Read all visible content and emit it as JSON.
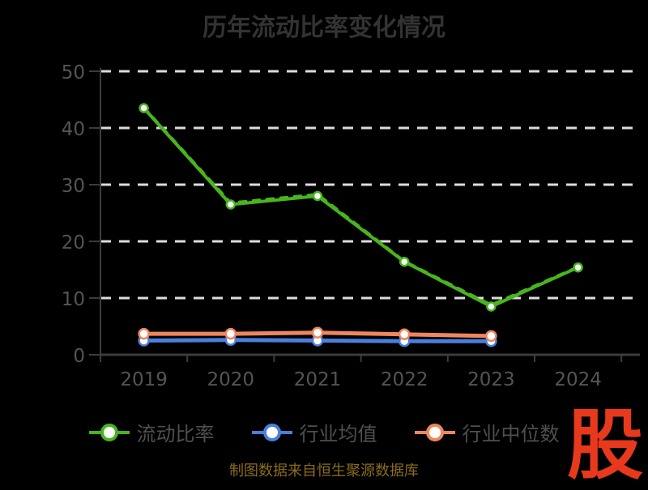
{
  "chart": {
    "title": "历年流动比率变化情况",
    "source_note": "制图数据来自恒生聚源数据库",
    "logo_text": "股"
  },
  "colors": {
    "background": "#000000",
    "title": "#333333",
    "axis_line": "#3c3c3c",
    "tick_label": "#545454",
    "gridline": "#dcdcdc",
    "legend_text": "#4f4f4f",
    "source_text": "#8a6c1e",
    "logo_red": "#e8391c",
    "series_green": "#48b41e",
    "series_blue": "#4a7fdd",
    "series_orange": "#f0865c",
    "marker_fill": "#ffffff"
  },
  "chart_data": {
    "type": "line",
    "title": "历年流动比率变化情况",
    "categories": [
      "2019",
      "2020",
      "2021",
      "2022",
      "2023",
      "2024"
    ],
    "series": [
      {
        "name": "流动比率",
        "color": "#48b41e",
        "line_style": "solid",
        "line_width": 4,
        "marker_radius": 5,
        "in_legend": true,
        "values": [
          43.5,
          26.5,
          28.0,
          16.4,
          8.5,
          15.4
        ]
      },
      {
        "name": "流动比率-重叠虚线",
        "color": "#48b41e",
        "line_style": "dashed",
        "line_width": 3.5,
        "marker_radius": 0,
        "in_legend": false,
        "values": [
          43.6,
          26.8,
          28.3,
          16.5,
          8.8,
          15.5
        ]
      },
      {
        "name": "行业均值",
        "color": "#4a7fdd",
        "line_style": "solid",
        "line_width": 5,
        "marker_radius": 6,
        "in_legend": true,
        "values": [
          2.5,
          2.6,
          2.5,
          2.4,
          2.4,
          null
        ]
      },
      {
        "name": "行业中位数",
        "color": "#f0865c",
        "line_style": "solid",
        "line_width": 5,
        "marker_radius": 6,
        "in_legend": true,
        "values": [
          3.7,
          3.7,
          3.9,
          3.6,
          3.3,
          null
        ]
      }
    ],
    "ylim": [
      0,
      50
    ],
    "yticks": [
      0,
      10,
      20,
      30,
      40,
      50
    ],
    "xlabel": "",
    "ylabel": "",
    "grid": "horizontal-dashed-white",
    "legend": [
      "流动比率",
      "行业均值",
      "行业中位数"
    ],
    "legend_position": "bottom"
  }
}
